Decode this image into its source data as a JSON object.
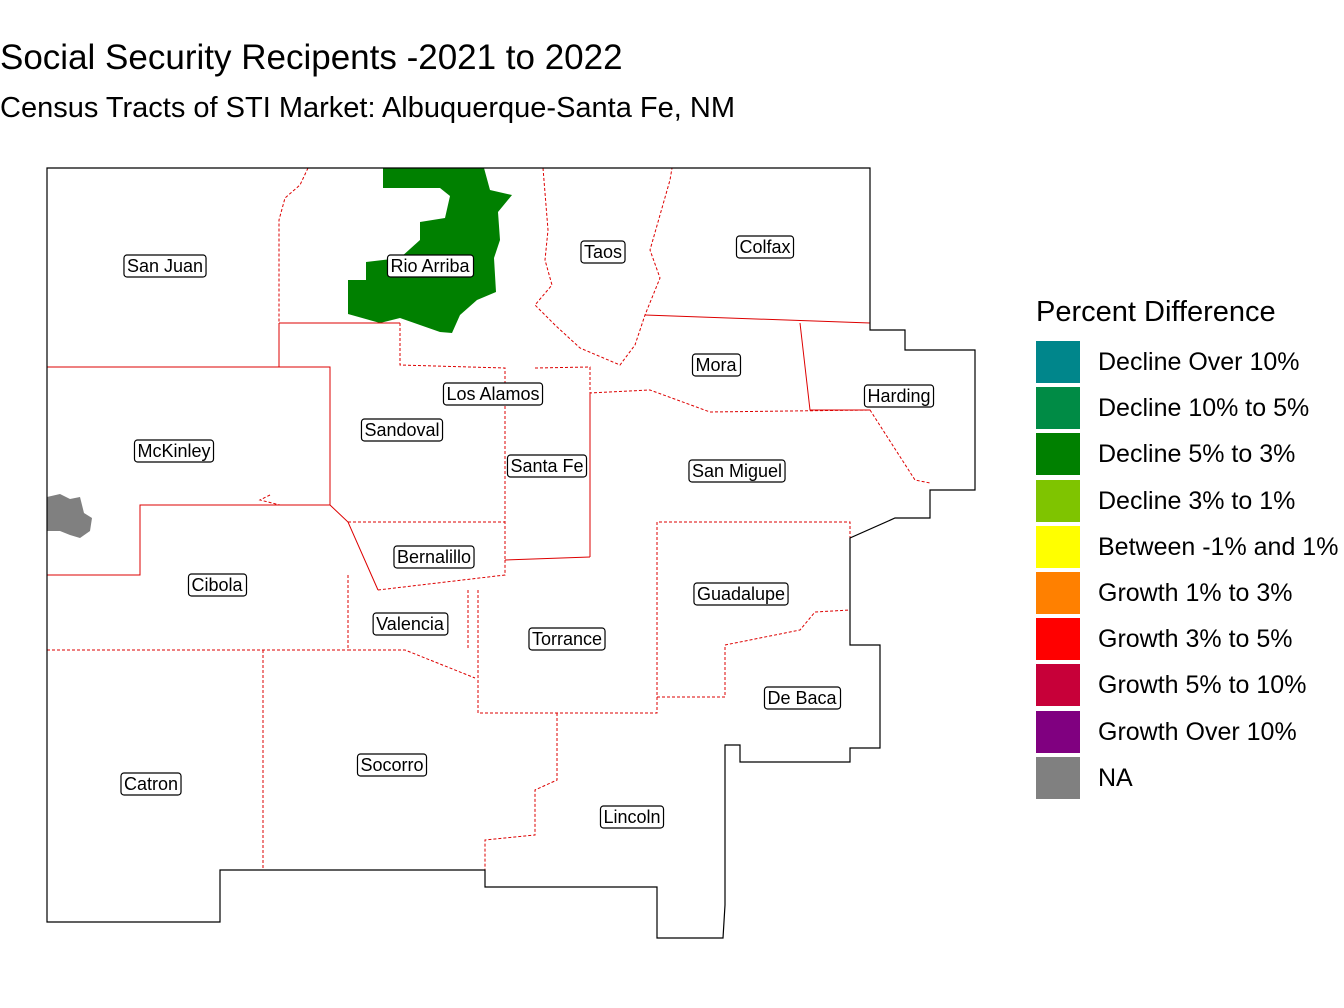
{
  "title": "Social Security Recipents -2021 to 2022",
  "subtitle": "Census Tracts of STI Market: Albuquerque-Santa Fe, NM",
  "map": {
    "counties": [
      "San Juan",
      "Rio Arriba",
      "Taos",
      "Colfax",
      "Mora",
      "Harding",
      "Los Alamos",
      "Sandoval",
      "McKinley",
      "Santa Fe",
      "San Miguel",
      "Bernalillo",
      "Cibola",
      "Guadalupe",
      "Valencia",
      "Torrance",
      "De Baca",
      "Catron",
      "Socorro",
      "Lincoln"
    ],
    "shaded_regions": [
      {
        "county": "Rio Arriba",
        "category": "Decline 5% to 3%",
        "color": "#008000"
      },
      {
        "county": "McKinley",
        "category": "NA",
        "color": "#808080"
      }
    ],
    "market_boundary_color": "#000000",
    "county_boundary_color": "#dd0000"
  },
  "legend": {
    "title": "Percent Difference",
    "items": [
      {
        "label": "Decline Over 10%",
        "color": "#00868B"
      },
      {
        "label": "Decline 10% to 5%",
        "color": "#008B45"
      },
      {
        "label": "Decline 5% to 3%",
        "color": "#008000"
      },
      {
        "label": "Decline 3% to 1%",
        "color": "#7FC400"
      },
      {
        "label": "Between -1% and 1%",
        "color": "#FFFF00"
      },
      {
        "label": "Growth 1% to 3%",
        "color": "#FF8000"
      },
      {
        "label": "Growth 3% to 5%",
        "color": "#FF0000"
      },
      {
        "label": "Growth 5% to 10%",
        "color": "#C70039"
      },
      {
        "label": "Growth Over 10%",
        "color": "#800080"
      },
      {
        "label": "NA",
        "color": "#808080"
      }
    ]
  }
}
